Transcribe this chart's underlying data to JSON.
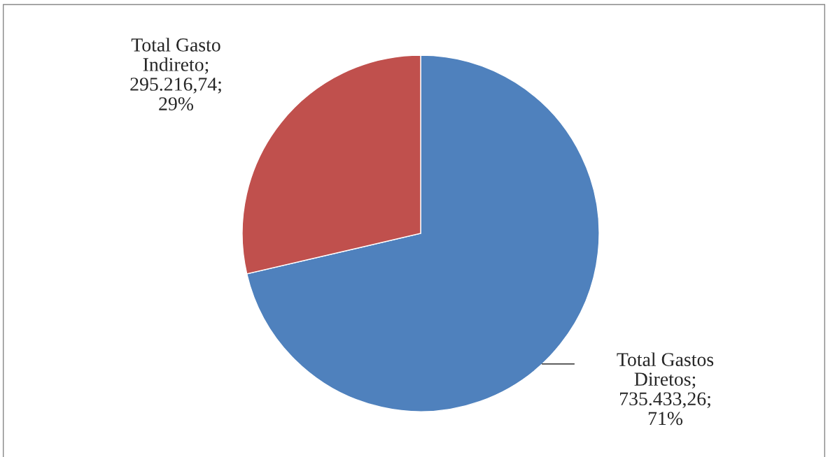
{
  "chart_data": {
    "type": "pie",
    "categories": [
      "Total Gastos Diretos",
      "Total Gasto Indireto"
    ],
    "values": [
      735433.26,
      295216.74
    ],
    "value_labels": [
      "; 735.433,26; 71%",
      "; 295.216,74; 29%"
    ],
    "colors": [
      "#4f81bd",
      "#c0504d"
    ],
    "legend": false
  }
}
